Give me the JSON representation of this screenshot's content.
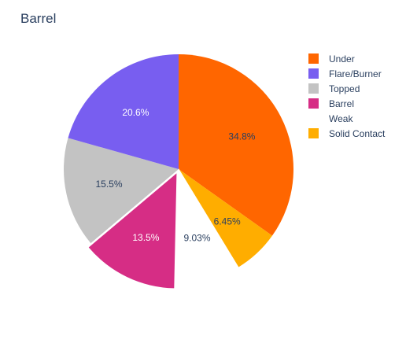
{
  "chart_data": {
    "type": "pie",
    "title": "Barrel",
    "legend_position": "top-right",
    "slices": [
      {
        "label": "Under",
        "percent_text": "34.8%",
        "value": 34.8,
        "color": "#ff6600",
        "text_color": "#2a3f5f",
        "pulled": false
      },
      {
        "label": "Solid Contact",
        "percent_text": "6.45%",
        "value": 6.45,
        "color": "#ffad00",
        "text_color": "#2a3f5f",
        "pulled": false
      },
      {
        "label": "Weak",
        "percent_text": "9.03%",
        "value": 9.03,
        "color": "#ffffff",
        "text_color": "#2a3f5f",
        "pulled": false
      },
      {
        "label": "Barrel",
        "percent_text": "13.5%",
        "value": 13.5,
        "color": "#d62d85",
        "text_color": "#ffffff",
        "pulled": true
      },
      {
        "label": "Topped",
        "percent_text": "15.5%",
        "value": 15.5,
        "color": "#c3c3c3",
        "text_color": "#2a3f5f",
        "pulled": false
      },
      {
        "label": "Flare/Burner",
        "percent_text": "20.6%",
        "value": 20.6,
        "color": "#785ef0",
        "text_color": "#ffffff",
        "pulled": false
      }
    ],
    "legend": [
      {
        "label": "Under",
        "color": "#ff6600"
      },
      {
        "label": "Flare/Burner",
        "color": "#785ef0"
      },
      {
        "label": "Topped",
        "color": "#c3c3c3"
      },
      {
        "label": "Barrel",
        "color": "#d62d85"
      },
      {
        "label": "Weak",
        "color": "#ffffff"
      },
      {
        "label": "Solid Contact",
        "color": "#ffad00"
      }
    ]
  }
}
